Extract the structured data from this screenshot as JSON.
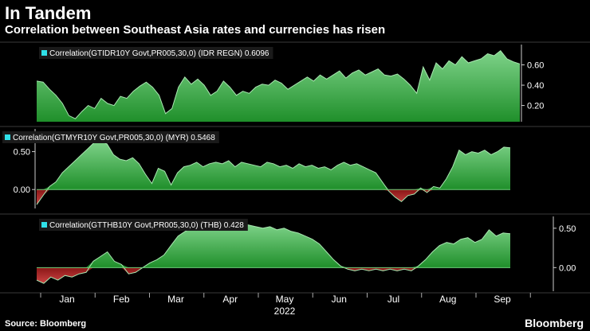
{
  "header": {
    "title": "In Tandem",
    "subtitle": "Correlation between Southeast Asia rates and currencies has risen"
  },
  "footer": {
    "source": "Source: Bloomberg",
    "brand": "Bloomberg"
  },
  "colors": {
    "positive": "#1f8f2a",
    "negative": "#8a1616",
    "legend_marker": "#2fe0e8",
    "frame": "#3a3a3a"
  },
  "chart_data": [
    {
      "type": "area",
      "title": "Correlation(GTIDR10Y Govt,PR005,30,0) (IDR REGN) 0.6096",
      "legend_text": "Correlation(GTIDR10Y Govt,PR005,30,0) (IDR REGN) 0.6096",
      "ylim": [
        0.04,
        0.8
      ],
      "yticks": [
        0.2,
        0.4,
        0.6
      ],
      "ytick_labels": [
        "0.20",
        "0.40",
        "0.60"
      ],
      "y_axis_side": "right",
      "series": [
        {
          "name": "IDR",
          "values": [
            0.44,
            0.43,
            0.36,
            0.3,
            0.22,
            0.1,
            0.07,
            0.14,
            0.2,
            0.17,
            0.27,
            0.22,
            0.2,
            0.29,
            0.27,
            0.34,
            0.39,
            0.43,
            0.38,
            0.3,
            0.12,
            0.17,
            0.38,
            0.48,
            0.41,
            0.46,
            0.4,
            0.3,
            0.34,
            0.44,
            0.38,
            0.3,
            0.34,
            0.32,
            0.38,
            0.41,
            0.4,
            0.45,
            0.42,
            0.36,
            0.4,
            0.44,
            0.48,
            0.44,
            0.5,
            0.46,
            0.5,
            0.54,
            0.47,
            0.52,
            0.55,
            0.5,
            0.53,
            0.56,
            0.5,
            0.49,
            0.51,
            0.46,
            0.4,
            0.32,
            0.58,
            0.45,
            0.62,
            0.56,
            0.64,
            0.6,
            0.68,
            0.62,
            0.64,
            0.66,
            0.71,
            0.69,
            0.74,
            0.66,
            0.63,
            0.61
          ]
        }
      ]
    },
    {
      "type": "area",
      "title": "Correlation(GTMYR10Y Govt,PR005,30,0) (MYR) 0.5468",
      "legend_text": "Correlation(GTMYR10Y Govt,PR005,30,0) (MYR) 0.5468",
      "ylim": [
        -0.25,
        0.8
      ],
      "yticks": [
        0.0,
        0.5
      ],
      "ytick_labels": [
        "0.00",
        "0.50"
      ],
      "y_axis_side": "left",
      "series": [
        {
          "name": "MYR",
          "values": [
            -0.2,
            -0.08,
            0.04,
            0.1,
            0.22,
            0.3,
            0.38,
            0.46,
            0.54,
            0.62,
            0.64,
            0.6,
            0.46,
            0.4,
            0.38,
            0.42,
            0.34,
            0.2,
            0.08,
            0.28,
            0.24,
            0.06,
            0.22,
            0.3,
            0.32,
            0.36,
            0.3,
            0.34,
            0.36,
            0.34,
            0.38,
            0.3,
            0.36,
            0.34,
            0.32,
            0.3,
            0.36,
            0.34,
            0.3,
            0.32,
            0.28,
            0.34,
            0.3,
            0.32,
            0.28,
            0.3,
            0.26,
            0.32,
            0.36,
            0.32,
            0.34,
            0.3,
            0.26,
            0.22,
            0.1,
            -0.02,
            -0.1,
            -0.16,
            -0.08,
            -0.06,
            0.02,
            -0.04,
            0.04,
            0.02,
            0.14,
            0.3,
            0.52,
            0.46,
            0.5,
            0.48,
            0.52,
            0.46,
            0.5,
            0.56,
            0.55
          ]
        }
      ]
    },
    {
      "type": "area",
      "title": "Correlation(GTTHB10Y Govt,PR005,30,0) (THB) 0.428",
      "legend_text": "Correlation(GTTHB10Y Govt,PR005,30,0) (THB) 0.428",
      "ylim": [
        -0.3,
        0.65
      ],
      "yticks": [
        0.0,
        0.5
      ],
      "ytick_labels": [
        "0.00",
        "0.50"
      ],
      "y_axis_side": "right",
      "series": [
        {
          "name": "THB",
          "values": [
            -0.16,
            -0.2,
            -0.12,
            -0.16,
            -0.1,
            -0.12,
            -0.08,
            -0.06,
            0.08,
            0.14,
            0.2,
            0.08,
            0.04,
            -0.08,
            -0.06,
            0.0,
            0.06,
            0.1,
            0.16,
            0.28,
            0.4,
            0.46,
            0.5,
            0.48,
            0.52,
            0.54,
            0.52,
            0.55,
            0.53,
            0.56,
            0.54,
            0.52,
            0.5,
            0.52,
            0.48,
            0.5,
            0.46,
            0.44,
            0.4,
            0.36,
            0.3,
            0.2,
            0.1,
            0.02,
            -0.02,
            -0.04,
            -0.02,
            -0.04,
            -0.02,
            -0.04,
            -0.02,
            -0.04,
            -0.02,
            -0.04,
            0.02,
            0.1,
            0.2,
            0.28,
            0.32,
            0.3,
            0.36,
            0.38,
            0.32,
            0.36,
            0.48,
            0.4,
            0.44,
            0.43
          ]
        }
      ]
    }
  ],
  "x_axis": {
    "months": [
      "Jan",
      "Feb",
      "Mar",
      "Apr",
      "May",
      "Jun",
      "Jul",
      "Aug",
      "Sep"
    ],
    "year": "2022"
  }
}
